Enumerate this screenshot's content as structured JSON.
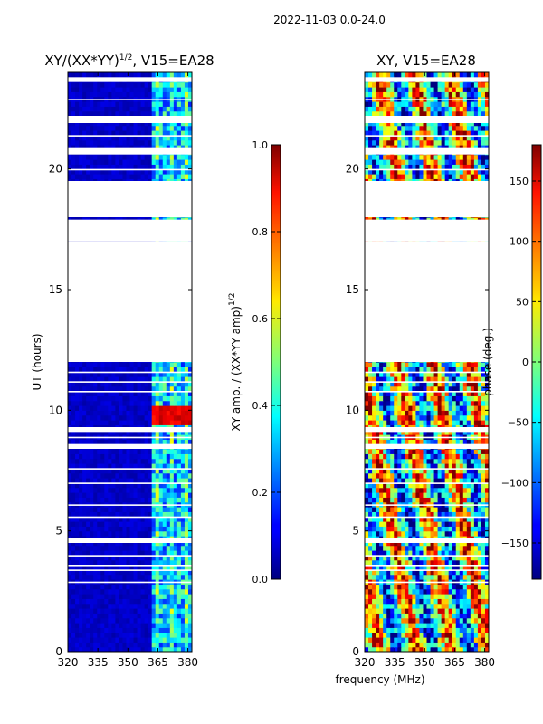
{
  "figure": {
    "suptitle": "2022-11-03 0.0-24.0",
    "shared_xlabel": "frequency (MHz)"
  },
  "chart_data": [
    {
      "type": "heatmap",
      "title": "XY/(XX*YY)^1/2, V15=EA28",
      "title_main": "XY/(XX*YY)",
      "title_sup": "1/2",
      "title_rest": ", V15=EA28",
      "ylabel": "UT (hours)",
      "xlim": [
        320,
        382
      ],
      "ylim": [
        0,
        24
      ],
      "xticks": [
        320,
        335,
        350,
        365,
        380
      ],
      "yticks": [
        0,
        5,
        10,
        15,
        20
      ],
      "colorbar": {
        "label_main": "XY amp. / (XX*YY amp)",
        "label_sup": "1/2",
        "range": [
          0.0,
          1.0
        ],
        "ticks": [
          "0.0",
          "0.2",
          "0.4",
          "0.6",
          "0.8",
          "1.0"
        ]
      },
      "data_gaps_hours": [
        [
          17.0,
          17.9
        ],
        [
          12.0,
          17.0
        ],
        [
          18.0,
          19.5
        ],
        [
          20.6,
          20.9
        ],
        [
          21.9,
          22.2
        ],
        [
          9.1,
          9.3
        ],
        [
          8.4,
          8.6
        ],
        [
          4.5,
          4.7
        ],
        [
          23.6,
          23.8
        ]
      ],
      "bright_band_mhz": [
        362,
        382
      ],
      "peak_hours": [
        9.5,
        10.2
      ]
    },
    {
      "type": "heatmap",
      "title": "XY, V15=EA28",
      "ylabel": "",
      "xlim": [
        320,
        382
      ],
      "ylim": [
        0,
        24
      ],
      "xticks": [
        320,
        335,
        350,
        365,
        380
      ],
      "yticks": [
        0,
        5,
        10,
        15,
        20
      ],
      "colorbar": {
        "label": "phase (deg.)",
        "range": [
          -180,
          180
        ],
        "ticks": [
          "150",
          "100",
          "50",
          "0",
          "−50",
          "−100",
          "−150"
        ]
      },
      "data_gaps_hours": [
        [
          17.0,
          17.9
        ],
        [
          12.0,
          17.0
        ],
        [
          18.0,
          19.5
        ],
        [
          20.6,
          20.9
        ],
        [
          21.9,
          22.2
        ],
        [
          9.1,
          9.3
        ],
        [
          8.4,
          8.6
        ],
        [
          4.5,
          4.7
        ],
        [
          23.6,
          23.8
        ]
      ]
    }
  ]
}
